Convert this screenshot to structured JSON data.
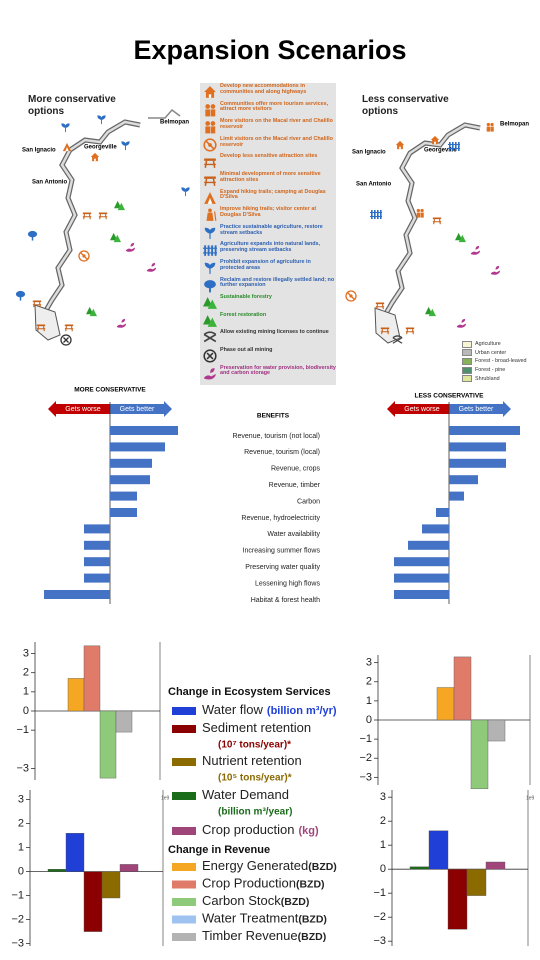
{
  "title": "Expansion Scenarios",
  "maps": {
    "left_title": "More conservative options",
    "right_title": "Less conservative options",
    "places": [
      "Belmopan",
      "San Ignacio",
      "Georgeville",
      "San Antonio"
    ],
    "actions": [
      "Develop new accommodations in communities and along highways",
      "Communities offer more tourism services, attract more visitors",
      "More visitors on the Macal river and Chalillo reservoir",
      "Limit visitors on the Macal river and Chalillo reservoir",
      "Develop less sensitive attraction sites",
      "Minimal development of more sensitive attraction sites",
      "Expand hiking trails; camping at Douglas D'Silva",
      "Improve hiking trails; visitor center at Douglas D'Silva",
      "Practice sustainable agriculture, restore stream setbacks",
      "Agriculture expands into natural lands, preserving stream setbacks",
      "Prohibit expansion of agriculture in protected areas",
      "Reclaim and restore illegally settled land; no further expansion",
      "Sustainable forestry",
      "Forest restoration",
      "Allow existing mining licenses to continue",
      "Phase out all mining",
      "Preservation for water provision, biodiversity and carbon storage"
    ],
    "land_cover": [
      {
        "name": "Agriculture",
        "color": "#f6f4d2"
      },
      {
        "name": "Urban center",
        "color": "#b9b9b9"
      },
      {
        "name": "Forest - broad-leaved",
        "color": "#86b35a"
      },
      {
        "name": "Forest - pine",
        "color": "#4f8f6e"
      },
      {
        "name": "Shrubland",
        "color": "#dfe89a"
      }
    ]
  },
  "chart_data": [
    {
      "type": "diverging_bar",
      "categories_title": "BENEFITS",
      "worse_label": "Gets worse",
      "better_label": "Gets better",
      "worse_color": "#c00000",
      "better_color": "#4472c4",
      "categories": [
        "Revenue, tourism (not local)",
        "Revenue, tourism (local)",
        "Revenue, crops",
        "Revenue, timber",
        "Carbon",
        "Revenue, hydroelectricity",
        "Water availability",
        "Increasing summer flows",
        "Preserving water quality",
        "Lessening high flows",
        "Habitat & forest health"
      ],
      "series": [
        {
          "name": "MORE CONSERVATIVE",
          "color": "#4472c4",
          "values": [
            68,
            55,
            42,
            40,
            27,
            27,
            -26,
            -26,
            -26,
            -26,
            -66
          ]
        },
        {
          "name": "LESS CONSERVATIVE",
          "color": "#4472c4",
          "values": [
            71,
            57,
            57,
            29,
            15,
            -13,
            -27,
            -41,
            -55,
            -55,
            -55
          ]
        }
      ]
    },
    {
      "type": "bar",
      "values": [
        1.7,
        3.4,
        -3.5,
        -1.1
      ],
      "colors": [
        "#f5a623",
        "#e07b6a",
        "#8fc97a",
        "#b3b3b3"
      ],
      "ylim": [
        -3.6,
        3.6
      ],
      "yticks": [
        3,
        2,
        1,
        0,
        {
          "value": -1,
          "label": "−1"
        },
        {
          "value": -3,
          "label": "−3"
        }
      ]
    },
    {
      "type": "bar",
      "values": [
        1.7,
        3.3,
        -3.6,
        -1.1
      ],
      "colors": [
        "#f5a623",
        "#e07b6a",
        "#8fc97a",
        "#b3b3b3"
      ],
      "ylim": [
        -3.4,
        3.4
      ],
      "yticks": [
        3,
        2,
        1,
        0,
        {
          "value": -1,
          "label": "−1"
        },
        {
          "value": -2,
          "label": "−2"
        },
        {
          "value": -3,
          "label": "−3"
        }
      ]
    },
    {
      "type": "bar",
      "values": [
        0.1,
        1.6,
        -2.5,
        -1.1,
        0.3
      ],
      "colors": [
        "#1a6b1a",
        "#1f3fd6",
        "#8b0000",
        "#8b6a00",
        "#a0457a"
      ],
      "ylim": [
        -3.1,
        3.4
      ],
      "scale_label": "1e9",
      "yticks": [
        3,
        2,
        1,
        0,
        {
          "value": -1,
          "label": "−1"
        },
        {
          "value": -2,
          "label": "−2"
        },
        {
          "value": -3,
          "label": "−3"
        }
      ]
    },
    {
      "type": "bar",
      "values": [
        0.1,
        1.6,
        -2.5,
        -1.1,
        0.3
      ],
      "colors": [
        "#1a6b1a",
        "#1f3fd6",
        "#8b0000",
        "#8b6a00",
        "#a0457a"
      ],
      "ylim": [
        -3.2,
        3.3
      ],
      "scale_label": "1e9",
      "yticks": [
        3,
        2,
        1,
        0,
        {
          "value": -1,
          "label": "−1"
        },
        {
          "value": -2,
          "label": "−2"
        },
        {
          "value": -3,
          "label": "−3"
        }
      ]
    }
  ],
  "legend": {
    "ecosystem_title": "Change in Ecosystem Services",
    "ecosystem_items": [
      {
        "name": "Water flow",
        "unit": "(billion m³/yr)",
        "color": "#1f3fd6"
      },
      {
        "name": "Sediment retention",
        "unit": "(10⁷ tons/year)*",
        "color": "#8b0000"
      },
      {
        "name": "Nutrient retention",
        "unit": "(10⁵ tons/year)*",
        "color": "#8b6a00"
      },
      {
        "name": "Water Demand",
        "unit": "(billion m³/year)",
        "color": "#1a6b1a"
      },
      {
        "name": "Crop production",
        "unit": "(kg)",
        "color": "#a0457a"
      }
    ],
    "revenue_title": "Change in Revenue",
    "revenue_items": [
      {
        "name": "Energy Generated",
        "unit": "(BZD)",
        "color": "#f5a623"
      },
      {
        "name": "Crop Production",
        "unit": "(BZD)",
        "color": "#e07b6a"
      },
      {
        "name": "Carbon Stock",
        "unit": "(BZD)",
        "color": "#8fc97a"
      },
      {
        "name": "Water Treatment",
        "unit": "(BZD)",
        "color": "#9ec3f0"
      },
      {
        "name": "Timber Revenue",
        "unit": "(BZD)",
        "color": "#b3b3b3"
      }
    ]
  }
}
